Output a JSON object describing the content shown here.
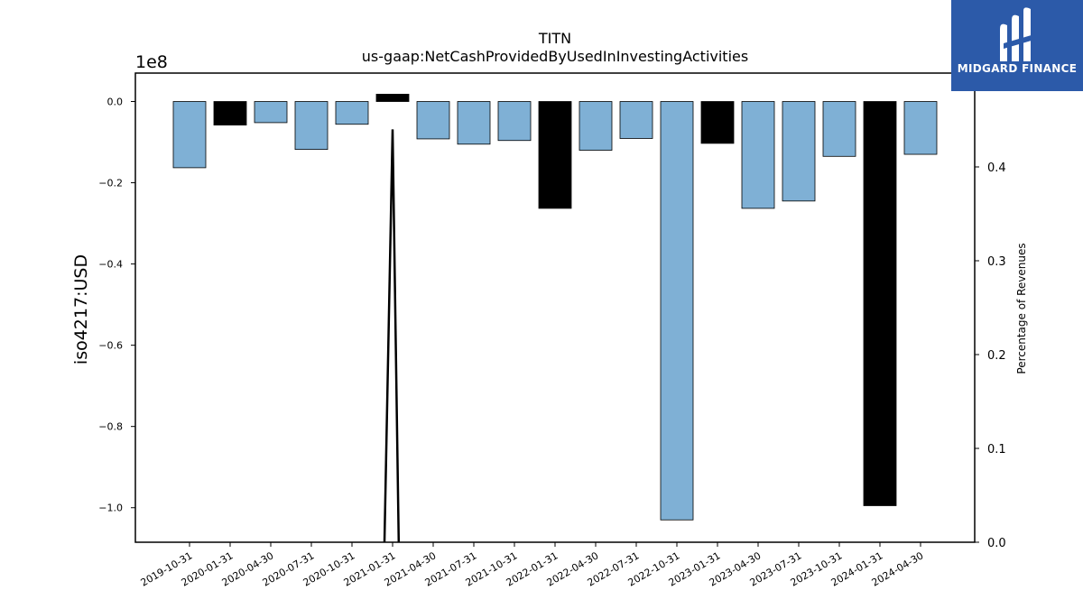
{
  "chart_data": {
    "type": "bar",
    "title": "TITN",
    "subtitle": "us-gaap:NetCashProvidedByUsedInInvestingActivities",
    "ylabel": "iso4217:USD",
    "y_multiplier_label": "1e8",
    "y2label": "Percentage of Revenues",
    "ylim": [
      -1.085,
      0.07
    ],
    "y2lim": [
      0.0,
      0.5
    ],
    "y_ticks": [
      {
        "value": 0.0,
        "label": "0.0"
      },
      {
        "value": -0.2,
        "label": "−0.2"
      },
      {
        "value": -0.4,
        "label": "−0.4"
      },
      {
        "value": -0.6,
        "label": "−0.6"
      },
      {
        "value": -0.8,
        "label": "−0.8"
      },
      {
        "value": -1.0,
        "label": "−1.0"
      }
    ],
    "y2_ticks": [
      {
        "value": 0.0,
        "label": "0.0"
      },
      {
        "value": 0.1,
        "label": "0.1"
      },
      {
        "value": 0.2,
        "label": "0.2"
      },
      {
        "value": 0.3,
        "label": "0.3"
      },
      {
        "value": 0.4,
        "label": "0.4"
      },
      {
        "value": 0.5,
        "label": "0.5"
      }
    ],
    "categories": [
      "2019-10-31",
      "2020-01-31",
      "2020-04-30",
      "2020-07-31",
      "2020-10-31",
      "2021-01-31",
      "2021-04-30",
      "2021-07-31",
      "2021-10-31",
      "2022-01-31",
      "2022-04-30",
      "2022-07-31",
      "2022-10-31",
      "2023-01-31",
      "2023-04-30",
      "2023-07-31",
      "2023-10-31",
      "2024-01-31",
      "2024-04-30"
    ],
    "values": [
      -0.163,
      -0.058,
      -0.052,
      -0.118,
      -0.056,
      0.018,
      -0.092,
      -0.105,
      -0.096,
      -0.263,
      -0.12,
      -0.091,
      -1.03,
      -0.103,
      -0.263,
      -0.245,
      -0.135,
      -0.995,
      -0.13
    ],
    "bar_kinds": [
      "quarter",
      "annual",
      "quarter",
      "quarter",
      "quarter",
      "annual",
      "quarter",
      "quarter",
      "quarter",
      "annual",
      "quarter",
      "quarter",
      "quarter",
      "annual",
      "quarter",
      "quarter",
      "quarter",
      "annual",
      "quarter"
    ],
    "colors": {
      "quarter": "#7fb0d5",
      "annual": "#000000"
    },
    "line": {
      "name": "Percentage of Revenues",
      "color": "#000000",
      "points": [
        {
          "x": 4.8,
          "y": 0.0
        },
        {
          "x": 5.0,
          "y": 0.44
        },
        {
          "x": 5.15,
          "y": 0.0
        }
      ]
    },
    "grid": false
  },
  "logo": {
    "text": "MIDGARD FINANCE"
  }
}
